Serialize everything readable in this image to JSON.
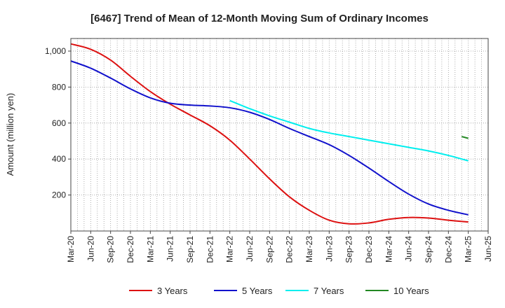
{
  "chart_data": {
    "type": "line",
    "title": "[6467]  Trend of Mean of 12-Month Moving Sum of Ordinary Incomes",
    "xlabel": "",
    "ylabel": "Amount (million yen)",
    "ylim": [
      0,
      1070
    ],
    "yticks": [
      200,
      400,
      600,
      800,
      1000
    ],
    "ytick_labels": [
      "200",
      "400",
      "600",
      "800",
      "1,000"
    ],
    "x_start": "Mar-20",
    "x_months_total": 63,
    "xtick_labels": [
      "Mar-20",
      "Jun-20",
      "Sep-20",
      "Dec-20",
      "Mar-21",
      "Jun-21",
      "Sep-21",
      "Dec-21",
      "Mar-22",
      "Jun-22",
      "Sep-22",
      "Dec-22",
      "Mar-23",
      "Jun-23",
      "Sep-23",
      "Dec-23",
      "Mar-24",
      "Jun-24",
      "Sep-24",
      "Dec-24",
      "Mar-25",
      "Jun-25"
    ],
    "grid": true,
    "legend_position": "bottom",
    "series": [
      {
        "name": "3 Years",
        "color": "#dd1111",
        "x_months": [
          0,
          3,
          6,
          9,
          12,
          15,
          18,
          21,
          24,
          27,
          30,
          33,
          36,
          39,
          42,
          45,
          48,
          51,
          54,
          57,
          60
        ],
        "values": [
          1040,
          1010,
          950,
          860,
          775,
          705,
          645,
          585,
          505,
          400,
          290,
          190,
          115,
          60,
          40,
          45,
          65,
          75,
          72,
          60,
          50
        ]
      },
      {
        "name": "5 Years",
        "color": "#1111cc",
        "x_months": [
          0,
          3,
          6,
          9,
          12,
          15,
          18,
          21,
          24,
          27,
          30,
          33,
          36,
          39,
          42,
          45,
          48,
          51,
          54,
          57,
          60
        ],
        "values": [
          945,
          905,
          850,
          790,
          740,
          710,
          700,
          695,
          685,
          660,
          620,
          570,
          525,
          480,
          420,
          350,
          275,
          205,
          150,
          115,
          90
        ]
      },
      {
        "name": "7 Years",
        "color": "#00eeee",
        "x_months": [
          24,
          27,
          30,
          33,
          36,
          39,
          42,
          45,
          48,
          51,
          54,
          57,
          60
        ],
        "values": [
          725,
          680,
          640,
          605,
          570,
          545,
          525,
          505,
          485,
          465,
          445,
          420,
          390
        ]
      },
      {
        "name": "10 Years",
        "color": "#228822",
        "x_months": [
          59,
          60
        ],
        "values": [
          525,
          515
        ]
      }
    ]
  }
}
